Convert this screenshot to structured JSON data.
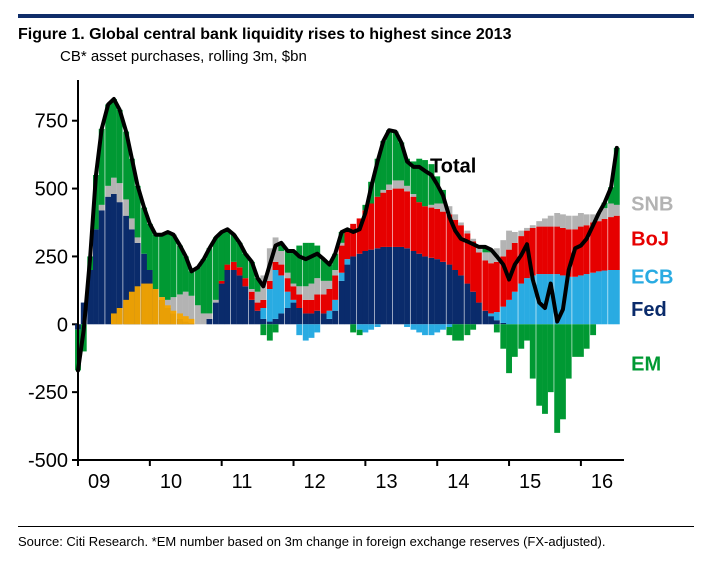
{
  "header": {
    "title": "Figure 1. Global central bank liquidity rises to highest since 2013",
    "subtitle": "CB* asset purchases, rolling 3m, $bn"
  },
  "footer": {
    "source": "Source: Citi Research. *EM number based on 3m change in foreign exchange reserves (FX-adjusted)."
  },
  "chart": {
    "type": "stacked-bar-plus-line",
    "background_color": "#ffffff",
    "rule_color": "#0f2d69",
    "axis_color": "#000000",
    "ylim": [
      -500,
      900
    ],
    "ytick_step": 250,
    "yticks": [
      -500,
      -250,
      0,
      250,
      500,
      750
    ],
    "xlim": [
      2009,
      2016.6
    ],
    "xticks": [
      2009,
      2010,
      2011,
      2012,
      2013,
      2014,
      2015,
      2016
    ],
    "xtick_labels": [
      "09",
      "10",
      "11",
      "12",
      "13",
      "14",
      "15",
      "16"
    ],
    "label_fontsize": 20,
    "title_fontsize": 16,
    "total_line": {
      "color": "#000000",
      "width": 4,
      "label": "Total",
      "label_pos": {
        "x": 2013.9,
        "y": 560
      }
    },
    "series_order": [
      "Fed",
      "ECB",
      "BoJ",
      "SNB",
      "EM"
    ],
    "series": {
      "Fed": {
        "color": "#0a2b6b",
        "label_pos": {
          "x": 2016.7,
          "y": 30
        }
      },
      "ECB": {
        "color": "#29abe2",
        "label_pos": {
          "x": 2016.7,
          "y": 150
        }
      },
      "BoJ": {
        "color": "#e60000",
        "label_pos": {
          "x": 2016.7,
          "y": 290
        }
      },
      "SNB": {
        "color": "#b3b3b3",
        "label_pos": {
          "x": 2016.7,
          "y": 420
        }
      },
      "EM": {
        "color": "#009933",
        "label_pos": {
          "x": 2016.7,
          "y": -170
        }
      }
    },
    "months": [
      "2009.00",
      "2009.08",
      "2009.17",
      "2009.25",
      "2009.33",
      "2009.42",
      "2009.50",
      "2009.58",
      "2009.67",
      "2009.75",
      "2009.83",
      "2009.92",
      "2010.00",
      "2010.08",
      "2010.17",
      "2010.25",
      "2010.33",
      "2010.42",
      "2010.50",
      "2010.58",
      "2010.67",
      "2010.75",
      "2010.83",
      "2010.92",
      "2011.00",
      "2011.08",
      "2011.17",
      "2011.25",
      "2011.33",
      "2011.42",
      "2011.50",
      "2011.58",
      "2011.67",
      "2011.75",
      "2011.83",
      "2011.92",
      "2012.00",
      "2012.08",
      "2012.17",
      "2012.25",
      "2012.33",
      "2012.42",
      "2012.50",
      "2012.58",
      "2012.67",
      "2012.75",
      "2012.83",
      "2012.92",
      "2013.00",
      "2013.08",
      "2013.17",
      "2013.25",
      "2013.33",
      "2013.42",
      "2013.50",
      "2013.58",
      "2013.67",
      "2013.75",
      "2013.83",
      "2013.92",
      "2014.00",
      "2014.08",
      "2014.17",
      "2014.25",
      "2014.33",
      "2014.42",
      "2014.50",
      "2014.58",
      "2014.67",
      "2014.75",
      "2014.83",
      "2014.92",
      "2015.00",
      "2015.08",
      "2015.17",
      "2015.25",
      "2015.33",
      "2015.42",
      "2015.50",
      "2015.58",
      "2015.67",
      "2015.75",
      "2015.83",
      "2015.92",
      "2016.00",
      "2016.08",
      "2016.17",
      "2016.25",
      "2016.33",
      "2016.42",
      "2016.50"
    ],
    "data": {
      "Fed": [
        -20,
        80,
        200,
        350,
        420,
        470,
        480,
        450,
        400,
        350,
        300,
        260,
        200,
        130,
        90,
        60,
        40,
        20,
        10,
        5,
        0,
        0,
        20,
        80,
        150,
        200,
        200,
        180,
        140,
        90,
        50,
        20,
        10,
        20,
        40,
        60,
        80,
        60,
        40,
        40,
        50,
        40,
        20,
        50,
        160,
        220,
        250,
        260,
        270,
        275,
        280,
        285,
        285,
        285,
        285,
        280,
        270,
        260,
        250,
        245,
        240,
        230,
        220,
        200,
        180,
        150,
        120,
        80,
        50,
        30,
        15,
        5,
        0,
        0,
        0,
        0,
        0,
        0,
        0,
        0,
        0,
        0,
        0,
        0,
        0,
        0,
        0,
        0,
        0,
        0,
        0
      ],
      "ECB": [
        0,
        0,
        0,
        0,
        0,
        0,
        0,
        0,
        0,
        0,
        0,
        0,
        0,
        0,
        0,
        0,
        0,
        0,
        0,
        0,
        0,
        0,
        0,
        0,
        0,
        0,
        0,
        0,
        0,
        0,
        0,
        40,
        120,
        180,
        140,
        60,
        10,
        -40,
        -60,
        -50,
        -30,
        0,
        30,
        40,
        30,
        20,
        0,
        -20,
        -30,
        -20,
        -10,
        0,
        0,
        0,
        0,
        -10,
        -20,
        -30,
        -40,
        -40,
        -30,
        -20,
        -10,
        0,
        0,
        0,
        0,
        0,
        0,
        10,
        30,
        60,
        90,
        120,
        150,
        170,
        180,
        185,
        185,
        185,
        185,
        180,
        175,
        175,
        180,
        185,
        190,
        195,
        198,
        200,
        200
      ],
      "BoJ": [
        0,
        0,
        0,
        0,
        0,
        0,
        0,
        0,
        0,
        0,
        0,
        0,
        0,
        0,
        0,
        0,
        0,
        0,
        0,
        0,
        0,
        0,
        0,
        0,
        10,
        20,
        30,
        30,
        30,
        30,
        30,
        30,
        30,
        30,
        40,
        50,
        50,
        50,
        50,
        50,
        60,
        70,
        80,
        90,
        100,
        110,
        120,
        130,
        150,
        170,
        190,
        200,
        210,
        215,
        215,
        210,
        200,
        190,
        185,
        185,
        185,
        185,
        185,
        185,
        185,
        185,
        185,
        185,
        185,
        185,
        185,
        185,
        185,
        180,
        175,
        175,
        175,
        175,
        175,
        175,
        175,
        175,
        175,
        175,
        180,
        180,
        185,
        185,
        190,
        195,
        200
      ],
      "SNB": [
        0,
        0,
        0,
        0,
        20,
        40,
        60,
        70,
        60,
        40,
        20,
        0,
        0,
        0,
        10,
        30,
        60,
        90,
        110,
        100,
        70,
        40,
        20,
        10,
        0,
        0,
        0,
        0,
        0,
        10,
        40,
        90,
        120,
        90,
        50,
        20,
        10,
        30,
        50,
        60,
        60,
        50,
        30,
        20,
        10,
        0,
        0,
        0,
        0,
        0,
        0,
        10,
        20,
        30,
        30,
        20,
        10,
        0,
        0,
        10,
        20,
        30,
        30,
        20,
        10,
        10,
        10,
        20,
        30,
        40,
        50,
        60,
        70,
        40,
        20,
        10,
        10,
        20,
        30,
        40,
        50,
        50,
        50,
        50,
        50,
        40,
        30,
        30,
        40,
        50,
        40
      ],
      "EM": [
        -150,
        -100,
        50,
        200,
        280,
        300,
        290,
        270,
        250,
        220,
        190,
        170,
        170,
        200,
        230,
        250,
        230,
        180,
        130,
        90,
        140,
        200,
        240,
        230,
        180,
        130,
        100,
        90,
        90,
        100,
        50,
        -40,
        -60,
        -30,
        30,
        80,
        120,
        150,
        160,
        150,
        120,
        80,
        60,
        60,
        40,
        0,
        -30,
        -20,
        20,
        80,
        140,
        180,
        200,
        180,
        140,
        100,
        120,
        160,
        170,
        150,
        100,
        50,
        -30,
        -60,
        -60,
        -40,
        -20,
        0,
        20,
        10,
        -30,
        -90,
        -180,
        -120,
        -90,
        -60,
        -200,
        -300,
        -330,
        -250,
        -400,
        -350,
        -200,
        -120,
        -120,
        -90,
        -40,
        0,
        20,
        60,
        210
      ]
    },
    "extra_marker": {
      "color": "#f5a500",
      "months": [
        "2009.50",
        "2009.58",
        "2009.67",
        "2009.75",
        "2009.83",
        "2009.92",
        "2010.00",
        "2010.08",
        "2010.17",
        "2010.25",
        "2010.33",
        "2010.42",
        "2010.50",
        "2010.58"
      ],
      "values": [
        40,
        60,
        90,
        120,
        140,
        150,
        150,
        130,
        100,
        70,
        50,
        40,
        30,
        20
      ]
    }
  }
}
